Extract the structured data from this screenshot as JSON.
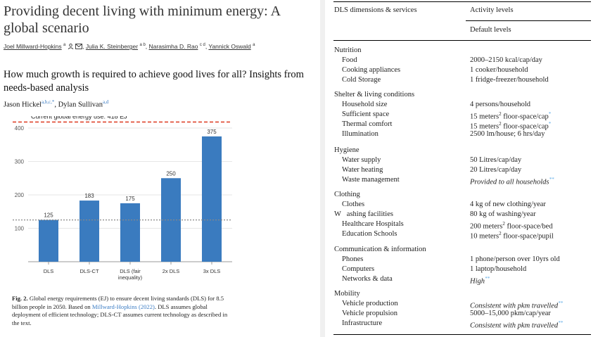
{
  "paper1": {
    "title": "Providing decent living with minimum energy: A global scenario",
    "authors": [
      {
        "name": "Joel Millward-Hopkins",
        "sup": "a"
      },
      {
        "name": "Julia K. Steinberger",
        "sup": "a b"
      },
      {
        "name": "Narasimha D. Rao",
        "sup": "c d"
      },
      {
        "name": "Yannick Oswald",
        "sup": "a"
      }
    ]
  },
  "paper2": {
    "title": "How much growth is required to achieve good lives for all? Insights from needs-based analysis",
    "authors": [
      {
        "name": "Jason Hickel",
        "sup": "a,b,c,*"
      },
      {
        "name": "Dylan Sullivan",
        "sup": "a,d"
      }
    ]
  },
  "chart_data": {
    "type": "bar",
    "categories": [
      "DLS",
      "DLS-CT",
      "DLS (fair inequality)",
      "2x DLS",
      "3x DLS"
    ],
    "category_lines": [
      [
        "DLS"
      ],
      [
        "DLS-CT"
      ],
      [
        "DLS (fair",
        "inequality)"
      ],
      [
        "2x DLS"
      ],
      [
        "3x DLS"
      ]
    ],
    "values": [
      125,
      183,
      175,
      250,
      375
    ],
    "data_labels": [
      "125",
      "183",
      "175",
      "250",
      "375"
    ],
    "ylim": [
      0,
      400
    ],
    "yticks": [
      100,
      200,
      300,
      400
    ],
    "reference_lines": [
      {
        "label": "Current global energy use: 418 EJ",
        "value": 418,
        "color": "#e0452e",
        "style": "dashed"
      },
      {
        "label": "",
        "value": 125,
        "color": "#888888",
        "style": "dotted"
      }
    ],
    "bar_color": "#3a7bbf",
    "grid": true
  },
  "caption": {
    "label": "Fig. 2.",
    "text_before_link": " Global energy requirements (EJ) to ensure decent living standards (DLS) for 8.5 billion people in 2050. Based on ",
    "link": "Millward-Hopkins (2022)",
    "text_after_link": ". DLS assumes global deployment of efficient technology; DLS-CT assumes current technology as described in the text."
  },
  "table": {
    "col1_header": "DLS dimensions & services",
    "col2_header": "Activity levels",
    "col2_subheader": "Default levels",
    "sections": [
      {
        "name": "Nutrition",
        "rows": [
          {
            "item": "Food",
            "value": "2000–2150 kcal/cap/day"
          },
          {
            "item": "Cooking appliances",
            "value": "1 cooker/household"
          },
          {
            "item": "Cold Storage",
            "value": "1 fridge-freezer/household"
          }
        ]
      },
      {
        "name": "Shelter & living conditions",
        "rows": [
          {
            "item": "Household size",
            "value": "4 persons/household"
          },
          {
            "item": "Sufficient space",
            "value": "15 meters² floor-space/cap*"
          },
          {
            "item": "Thermal comfort",
            "value": "15 meters² floor-space/cap*"
          },
          {
            "item": "Illumination",
            "value": "2500 lm/house; 6 hrs/day"
          }
        ]
      },
      {
        "name": "Hygiene",
        "rows": [
          {
            "item": "Water supply",
            "value": "50 Litres/cap/day"
          },
          {
            "item": "Water heating",
            "value": "20 Litres/cap/day"
          },
          {
            "item": "Waste management",
            "value": "Provided to all households**"
          }
        ]
      },
      {
        "name": "Clothing",
        "rows": [
          {
            "item": "Clothes",
            "value": "4 kg of new clothing/year"
          },
          {
            "item": "W   ashing facilities",
            "value": "80 kg of washing/year"
          },
          {
            "item": "Healthcare Hospitals",
            "value": "200 meters² floor-space/bed"
          },
          {
            "item": "Education Schools",
            "value": "10 meters² floor-space/pupil"
          }
        ]
      },
      {
        "name": "Communication & information",
        "rows": [
          {
            "item": "Phones",
            "value": "1 phone/person over 10yrs old"
          },
          {
            "item": "Computers",
            "value": "1 laptop/household"
          },
          {
            "item": "Networks & data",
            "value": "High**"
          }
        ]
      },
      {
        "name": "Mobility",
        "rows": [
          {
            "item": "Vehicle production",
            "value": "Consistent with pkm travelled**"
          },
          {
            "item": "Vehicle propulsion",
            "value": "5000–15,000 pkm/cap/year"
          },
          {
            "item": "Infrastructure",
            "value": "Consistent with pkm travelled**"
          }
        ]
      }
    ]
  }
}
